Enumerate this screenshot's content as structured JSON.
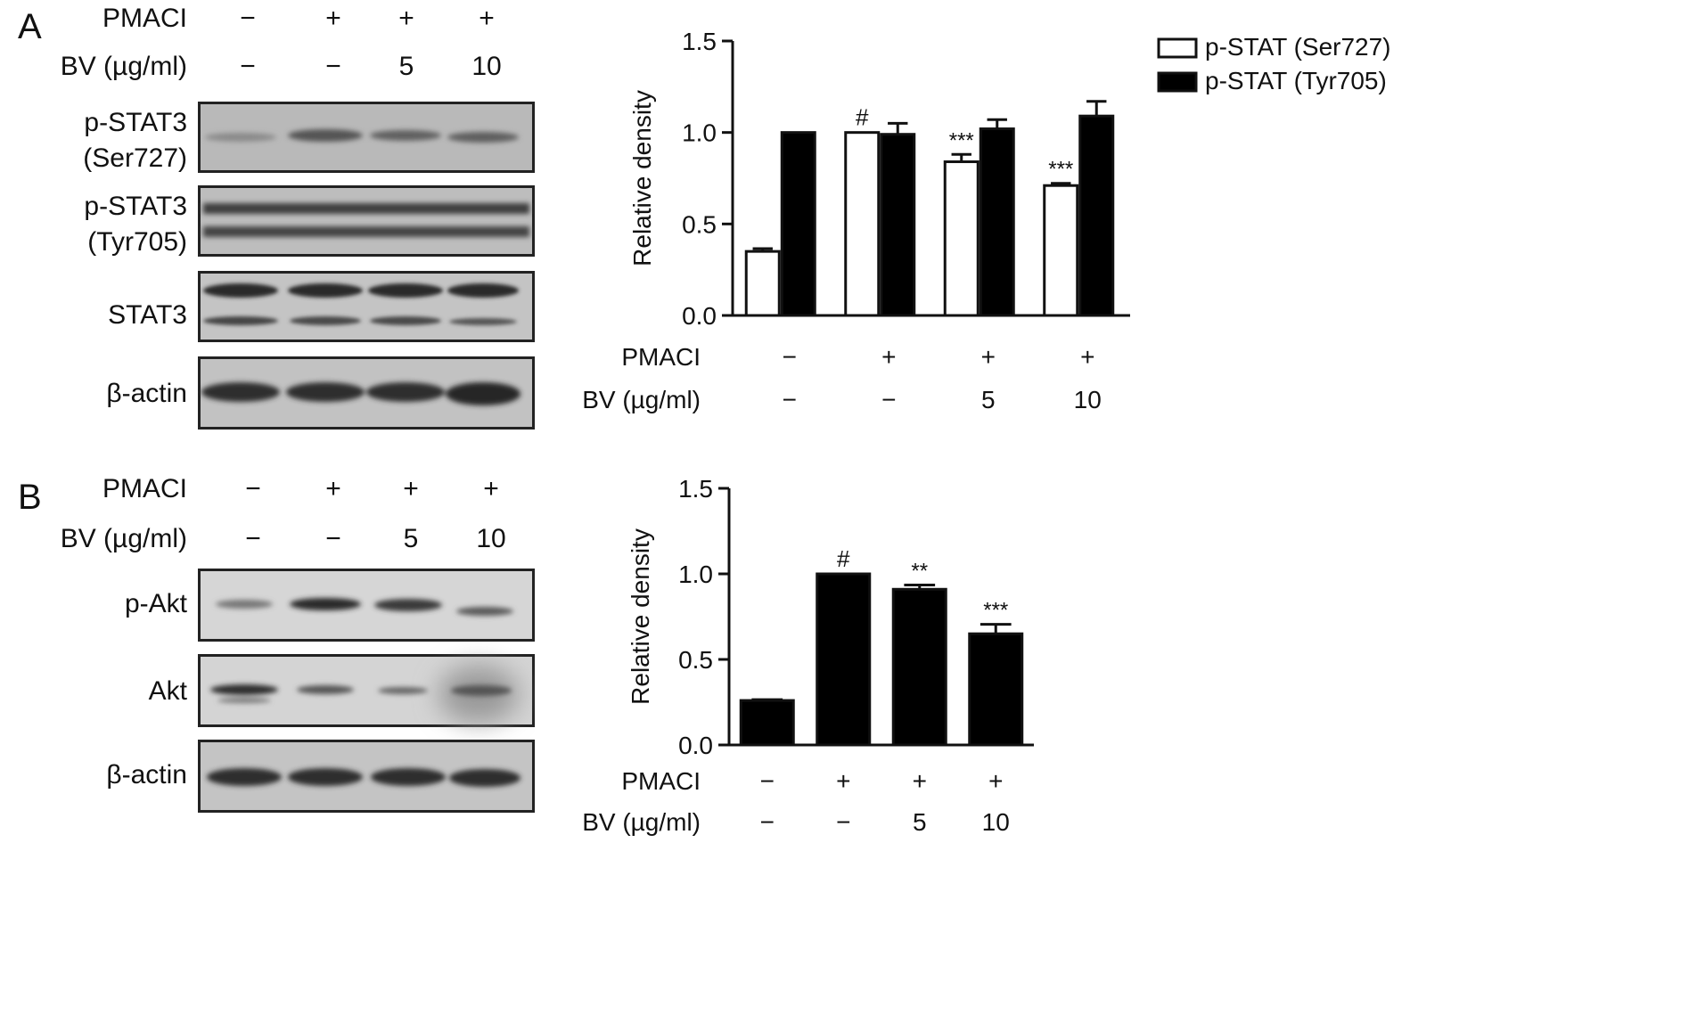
{
  "panel_a": {
    "letter": "A",
    "conditions": {
      "pmaci_label": "PMACI",
      "pmaci_values": [
        "−",
        "+",
        "+",
        "+"
      ],
      "bv_label": "BV (µg/ml)",
      "bv_values": [
        "−",
        "−",
        "5",
        "10"
      ]
    },
    "blots": [
      {
        "label_line1": "p-STAT3",
        "label_line2": "(Ser727)"
      },
      {
        "label_line1": "p-STAT3",
        "label_line2": "(Tyr705)"
      },
      {
        "label_line1": "STAT3",
        "label_line2": ""
      },
      {
        "label_line1": "β-actin",
        "label_line2": ""
      }
    ]
  },
  "panel_b": {
    "letter": "B",
    "conditions": {
      "pmaci_label": "PMACI",
      "pmaci_values": [
        "−",
        "+",
        "+",
        "+"
      ],
      "bv_label": "BV (µg/ml)",
      "bv_values": [
        "−",
        "−",
        "5",
        "10"
      ]
    },
    "blots": [
      {
        "label_line1": "p-Akt",
        "label_line2": ""
      },
      {
        "label_line1": "Akt",
        "label_line2": ""
      },
      {
        "label_line1": "β-actin",
        "label_line2": ""
      }
    ]
  },
  "chart_data": [
    {
      "type": "bar",
      "panel": "A",
      "ylabel": "Relative density",
      "ylim": [
        0,
        1.5
      ],
      "yticks": [
        "0.0",
        "0.5",
        "1.0",
        "1.5"
      ],
      "categories": [
        "1",
        "2",
        "3",
        "4"
      ],
      "x_rows": [
        {
          "label": "PMACI",
          "values": [
            "−",
            "+",
            "+",
            "+"
          ]
        },
        {
          "label": "BV (µg/ml)",
          "values": [
            "−",
            "−",
            "5",
            "10"
          ]
        }
      ],
      "series": [
        {
          "name": "p-STAT (Ser727)",
          "fill": "#ffffff",
          "values": [
            0.35,
            1.0,
            0.84,
            0.71
          ],
          "errors": [
            0.015,
            0.0,
            0.04,
            0.012
          ],
          "annotations": [
            "",
            "#",
            "***",
            "***"
          ]
        },
        {
          "name": "p-STAT (Tyr705)",
          "fill": "#000000",
          "values": [
            1.0,
            0.99,
            1.02,
            1.09
          ],
          "errors": [
            0.0,
            0.06,
            0.05,
            0.08
          ],
          "annotations": [
            "",
            "",
            "",
            ""
          ]
        }
      ],
      "legend": "top-right outside"
    },
    {
      "type": "bar",
      "panel": "B",
      "ylabel": "Relative density",
      "ylim": [
        0,
        1.5
      ],
      "yticks": [
        "0.0",
        "0.5",
        "1.0",
        "1.5"
      ],
      "categories": [
        "1",
        "2",
        "3",
        "4"
      ],
      "x_rows": [
        {
          "label": "PMACI",
          "values": [
            "−",
            "+",
            "+",
            "+"
          ]
        },
        {
          "label": "BV (µg/ml)",
          "values": [
            "−",
            "−",
            "5",
            "10"
          ]
        }
      ],
      "series": [
        {
          "name": "",
          "fill": "#000000",
          "values": [
            0.26,
            1.0,
            0.91,
            0.65
          ],
          "errors": [
            0.005,
            0.0,
            0.025,
            0.055
          ],
          "annotations": [
            "",
            "#",
            "**",
            "***"
          ]
        }
      ]
    }
  ]
}
